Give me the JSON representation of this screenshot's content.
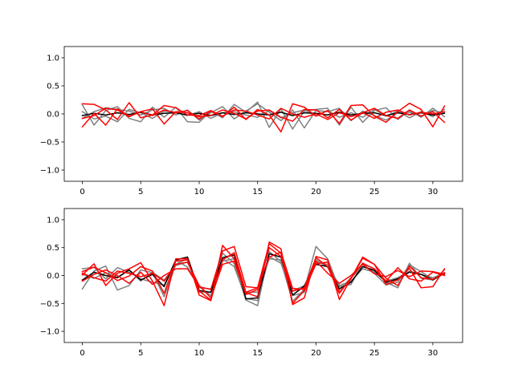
{
  "chart_data": [
    {
      "type": "line",
      "title": "",
      "xlabel": "",
      "ylabel": "",
      "xlim": [
        -1.55,
        32.55
      ],
      "ylim": [
        -1.2,
        1.2
      ],
      "xticks": [
        0,
        5,
        10,
        15,
        20,
        25,
        30
      ],
      "yticks": [
        -1.0,
        -0.5,
        0.0,
        0.5,
        1.0
      ],
      "xtick_labels": [
        "0",
        "5",
        "10",
        "15",
        "20",
        "25",
        "30"
      ],
      "ytick_labels": [
        "−1.0",
        "−0.5",
        "0.0",
        "0.5",
        "1.0"
      ],
      "grid": false,
      "x": [
        0,
        1,
        2,
        3,
        4,
        5,
        6,
        7,
        8,
        9,
        10,
        11,
        12,
        13,
        14,
        15,
        16,
        17,
        18,
        19,
        20,
        21,
        22,
        23,
        24,
        25,
        26,
        27,
        28,
        29,
        30,
        31
      ],
      "series": [
        {
          "color": "#808080",
          "values": [
            0.16,
            -0.2,
            0.06,
            0.13,
            -0.08,
            -0.14,
            0.12,
            -0.06,
            0.12,
            -0.14,
            -0.15,
            0.05,
            -0.07,
            0.17,
            0.03,
            0.21,
            -0.24,
            0.09,
            -0.27,
            0.05,
            0.08,
            0.1,
            -0.2,
            0.12,
            -0.15,
            0.06,
            0.11,
            -0.1,
            0.06,
            -0.06,
            0.1,
            -0.05
          ]
        },
        {
          "color": "#808080",
          "values": [
            -0.08,
            0.04,
            0.11,
            0.08,
            0.05,
            -0.02,
            0.07,
            0.1,
            -0.02,
            0.07,
            -0.11,
            0.02,
            0.13,
            -0.09,
            0.05,
            0.18,
            0.03,
            -0.12,
            0.07,
            -0.25,
            0.06,
            0.04,
            0.1,
            -0.12,
            0.05,
            -0.03,
            -0.11,
            0.02,
            0.03,
            -0.04,
            0.06,
            0.02
          ]
        },
        {
          "color": "#808080",
          "values": [
            0.04,
            -0.09,
            -0.04,
            -0.14,
            0.08,
            0.02,
            -0.08,
            0.05,
            0.03,
            -0.03,
            0.04,
            -0.08,
            0.02,
            0.04,
            -0.02,
            -0.06,
            0.06,
            -0.07,
            0.02,
            0.07,
            -0.04,
            0.06,
            -0.06,
            0.02,
            -0.06,
            0.08,
            -0.04,
            0.05,
            -0.07,
            0.04,
            -0.05,
            0.08
          ]
        },
        {
          "color": "#000000",
          "values": [
            -0.03,
            0.01,
            -0.02,
            0.02,
            -0.01,
            0.03,
            -0.02,
            0.01,
            0.02,
            -0.02,
            0.01,
            -0.03,
            0.02,
            -0.01,
            0.02,
            0.0,
            -0.02,
            0.03,
            -0.03,
            0.02,
            0.01,
            -0.02,
            0.03,
            -0.02,
            0.01,
            0.02,
            -0.03,
            0.02,
            -0.01,
            0.02,
            -0.02,
            0.01
          ]
        },
        {
          "color": "#ff0000",
          "values": [
            0.18,
            0.17,
            0.07,
            -0.1,
            0.2,
            -0.07,
            -0.02,
            0.15,
            0.11,
            -0.02,
            -0.03,
            0.06,
            -0.05,
            0.12,
            -0.1,
            0.08,
            -0.02,
            -0.32,
            0.18,
            0.12,
            -0.04,
            0.06,
            -0.17,
            0.15,
            0.16,
            -0.04,
            -0.15,
            0.04,
            0.19,
            0.08,
            -0.23,
            0.14
          ]
        },
        {
          "color": "#ff0000",
          "values": [
            -0.23,
            0.01,
            -0.2,
            0.09,
            -0.04,
            0.04,
            0.09,
            -0.18,
            0.04,
            0.02,
            -0.05,
            -0.03,
            0.07,
            0.01,
            -0.09,
            0.05,
            0.07,
            -0.06,
            -0.13,
            0.08,
            0.07,
            -0.07,
            0.08,
            -0.11,
            0.02,
            0.1,
            -0.03,
            -0.08,
            0.07,
            -0.04,
            0.04,
            -0.15
          ]
        },
        {
          "color": "#ff0000",
          "values": [
            -0.08,
            -0.03,
            0.1,
            0.07,
            -0.05,
            0.04,
            -0.03,
            0.07,
            0.02,
            0.06,
            -0.09,
            0.05,
            -0.04,
            0.07,
            0.05,
            -0.02,
            -0.09,
            0.1,
            0.0,
            -0.06,
            0.0,
            -0.1,
            0.02,
            -0.05,
            0.02,
            -0.08,
            0.03,
            0.07,
            -0.02,
            0.03,
            0.0,
            0.04
          ]
        }
      ]
    },
    {
      "type": "line",
      "title": "",
      "xlabel": "",
      "ylabel": "",
      "xlim": [
        -1.55,
        32.55
      ],
      "ylim": [
        -1.2,
        1.2
      ],
      "xticks": [
        0,
        5,
        10,
        15,
        20,
        25,
        30
      ],
      "yticks": [
        -1.0,
        -0.5,
        0.0,
        0.5,
        1.0
      ],
      "xtick_labels": [
        "0",
        "5",
        "10",
        "15",
        "20",
        "25",
        "30"
      ],
      "ytick_labels": [
        "−1.0",
        "−0.5",
        "0.0",
        "0.5",
        "1.0"
      ],
      "grid": false,
      "x": [
        0,
        1,
        2,
        3,
        4,
        5,
        6,
        7,
        8,
        9,
        10,
        11,
        12,
        13,
        14,
        15,
        16,
        17,
        18,
        19,
        20,
        21,
        22,
        23,
        24,
        25,
        26,
        27,
        28,
        29,
        30,
        31
      ],
      "series": [
        {
          "color": "#808080",
          "values": [
            -0.24,
            0.08,
            0.17,
            -0.26,
            -0.18,
            0.1,
            0.05,
            -0.38,
            0.2,
            0.3,
            -0.3,
            -0.3,
            0.4,
            0.22,
            -0.44,
            -0.54,
            0.43,
            0.25,
            -0.46,
            -0.25,
            0.52,
            0.3,
            -0.25,
            -0.04,
            0.16,
            0.1,
            -0.12,
            -0.22,
            0.22,
            -0.05,
            -0.08,
            0.1
          ]
        },
        {
          "color": "#808080",
          "values": [
            0.12,
            0.15,
            -0.06,
            0.14,
            0.06,
            -0.06,
            -0.12,
            -0.17,
            0.28,
            0.15,
            -0.19,
            -0.36,
            0.3,
            0.16,
            -0.41,
            -0.45,
            0.34,
            0.22,
            -0.36,
            -0.3,
            0.28,
            0.15,
            -0.2,
            -0.16,
            0.22,
            0.04,
            -0.17,
            -0.12,
            0.19,
            0.07,
            -0.07,
            0.05
          ]
        },
        {
          "color": "#808080",
          "values": [
            0.02,
            -0.05,
            0.05,
            -0.03,
            0.1,
            -0.1,
            0.06,
            -0.08,
            0.18,
            0.24,
            -0.22,
            -0.24,
            0.26,
            0.3,
            -0.3,
            -0.3,
            0.3,
            0.28,
            -0.28,
            -0.18,
            0.24,
            0.2,
            -0.18,
            -0.1,
            0.12,
            0.06,
            -0.1,
            -0.04,
            0.08,
            0.02,
            -0.04,
            0.04
          ]
        },
        {
          "color": "#000000",
          "values": [
            -0.08,
            0.06,
            0.0,
            -0.04,
            0.1,
            -0.08,
            0.02,
            -0.2,
            0.28,
            0.33,
            -0.27,
            -0.3,
            0.32,
            0.37,
            -0.42,
            -0.4,
            0.39,
            0.33,
            -0.35,
            -0.19,
            0.2,
            0.16,
            -0.24,
            -0.12,
            0.16,
            0.09,
            -0.12,
            -0.06,
            0.06,
            0.02,
            -0.08,
            0.04
          ]
        },
        {
          "color": "#ff0000",
          "values": [
            0.01,
            0.21,
            -0.18,
            0.04,
            0.12,
            0.23,
            -0.1,
            -0.54,
            0.3,
            0.3,
            -0.35,
            -0.45,
            0.54,
            0.3,
            -0.31,
            -0.38,
            0.6,
            0.48,
            -0.52,
            -0.4,
            0.34,
            0.28,
            -0.43,
            -0.05,
            0.33,
            0.2,
            -0.16,
            -0.08,
            0.13,
            -0.22,
            -0.2,
            0.12
          ]
        },
        {
          "color": "#ff0000",
          "values": [
            0.07,
            0.15,
            0.05,
            -0.09,
            -0.01,
            0.16,
            0.08,
            -0.32,
            0.26,
            0.28,
            -0.28,
            -0.44,
            0.28,
            0.41,
            -0.3,
            -0.22,
            0.57,
            0.4,
            -0.5,
            -0.27,
            0.21,
            0.24,
            -0.3,
            -0.06,
            0.31,
            0.2,
            -0.05,
            -0.18,
            0.17,
            -0.04,
            -0.07,
            0.05
          ]
        },
        {
          "color": "#ff0000",
          "values": [
            -0.1,
            0.02,
            0.1,
            0.0,
            -0.14,
            0.06,
            -0.16,
            0.0,
            0.12,
            0.12,
            -0.2,
            -0.25,
            0.44,
            0.52,
            -0.2,
            -0.22,
            0.33,
            0.42,
            -0.23,
            -0.25,
            0.26,
            0.04,
            -0.14,
            0.0,
            0.2,
            0.03,
            -0.02,
            0.09,
            -0.02,
            0.08,
            0.07,
            0.02
          ]
        },
        {
          "color": "#ff0000",
          "values": [
            0.04,
            -0.04,
            -0.1,
            0.08,
            0.04,
            -0.02,
            0.04,
            -0.1,
            0.2,
            0.24,
            -0.18,
            -0.4,
            0.2,
            0.26,
            -0.34,
            -0.25,
            0.5,
            0.34,
            -0.28,
            -0.22,
            0.32,
            0.16,
            -0.32,
            -0.04,
            0.22,
            0.12,
            -0.1,
            0.14,
            -0.06,
            -0.1,
            0.06,
            0.0
          ]
        }
      ]
    }
  ]
}
